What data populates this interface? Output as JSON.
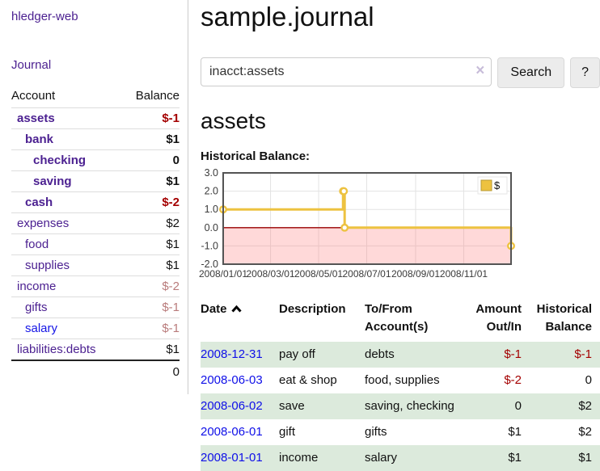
{
  "colors": {
    "link_purple": "#4c2191",
    "link_blue": "#1515e6",
    "negative_strong": "#a40000",
    "negative_muted": "#b97b7b",
    "row_green": "#dceadc",
    "chart_line": "#edc240",
    "chart_zero_line": "#990000",
    "chart_border": "#545454"
  },
  "sidebar": {
    "brand": "hledger-web",
    "journal_link": "Journal",
    "accounts": {
      "header_account": "Account",
      "header_balance": "Balance",
      "rows": [
        {
          "name": "assets",
          "balance": "$-1",
          "level": 1,
          "bold": true,
          "balance_style": "negative"
        },
        {
          "name": "bank",
          "balance": "$1",
          "level": 2,
          "bold": true,
          "balance_style": "normal"
        },
        {
          "name": "checking",
          "balance": "0",
          "level": 3,
          "bold": true,
          "balance_style": "normal"
        },
        {
          "name": "saving",
          "balance": "$1",
          "level": 3,
          "bold": true,
          "balance_style": "normal"
        },
        {
          "name": "cash",
          "balance": "$-2",
          "level": 2,
          "bold": true,
          "balance_style": "negative"
        },
        {
          "name": "expenses",
          "balance": "$2",
          "level": 1,
          "bold": false,
          "balance_style": "normal"
        },
        {
          "name": "food",
          "balance": "$1",
          "level": 2,
          "bold": false,
          "balance_style": "normal"
        },
        {
          "name": "supplies",
          "balance": "$1",
          "level": 2,
          "bold": false,
          "balance_style": "normal"
        },
        {
          "name": "income",
          "balance": "$-2",
          "level": 1,
          "bold": false,
          "balance_style": "muted"
        },
        {
          "name": "gifts",
          "balance": "$-1",
          "level": 2,
          "bold": false,
          "balance_style": "muted"
        },
        {
          "name": "salary",
          "balance": "$-1",
          "level": 2,
          "bold": false,
          "balance_style": "muted",
          "link_style": "blue"
        },
        {
          "name": "liabilities:debts",
          "balance": "$1",
          "level": 1,
          "bold": false,
          "balance_style": "normal"
        }
      ],
      "total": "0"
    }
  },
  "header": {
    "title": "sample.journal"
  },
  "search": {
    "value": "inacct:assets",
    "clear_icon": "×",
    "search_button": "Search",
    "help_button": "?"
  },
  "account_page": {
    "heading": "assets",
    "chart_label": "Historical Balance:"
  },
  "chart_data": {
    "type": "line",
    "step": true,
    "title": "Historical Balance",
    "legend": [
      {
        "label": "$",
        "color": "#edc240"
      }
    ],
    "legend_position": "top-right",
    "grid": true,
    "negative_region": true,
    "x_tick_labels": [
      "2008/01/01",
      "2008/03/01",
      "2008/05/01",
      "2008/07/01",
      "2008/09/01",
      "2008/11/01"
    ],
    "x_tick_days": [
      0,
      60,
      121,
      182,
      244,
      305
    ],
    "x_range_days": [
      0,
      365
    ],
    "y_ticks": [
      "3.0",
      "2.0",
      "1.0",
      "0.0",
      "-1.0",
      "-2.0"
    ],
    "y_tick_values": [
      3,
      2,
      1,
      0,
      -1,
      -2
    ],
    "ylim": [
      -2,
      3
    ],
    "series": [
      {
        "name": "$",
        "color": "#edc240",
        "points": [
          {
            "date": "2008-01-01",
            "day": 0,
            "value": 1
          },
          {
            "date": "2008-06-01",
            "day": 152,
            "value": 2
          },
          {
            "date": "2008-06-02",
            "day": 153,
            "value": 2
          },
          {
            "date": "2008-06-03",
            "day": 154,
            "value": 0
          },
          {
            "date": "2008-12-31",
            "day": 365,
            "value": -1
          }
        ]
      }
    ]
  },
  "register": {
    "headers": {
      "date": "Date",
      "description": "Description",
      "accounts": "To/From\nAccount(s)",
      "amount": "Amount\nOut/In",
      "balance": "Historical\nBalance"
    },
    "sort": "ascending",
    "rows": [
      {
        "date": "2008-12-31",
        "description": "pay off",
        "accounts": "debts",
        "amount": "$-1",
        "balance": "$-1"
      },
      {
        "date": "2008-06-03",
        "description": "eat & shop",
        "accounts": "food, supplies",
        "amount": "$-2",
        "balance": "0"
      },
      {
        "date": "2008-06-02",
        "description": "save",
        "accounts": "saving, checking",
        "amount": "0",
        "balance": "$2"
      },
      {
        "date": "2008-06-01",
        "description": "gift",
        "accounts": "gifts",
        "amount": "$1",
        "balance": "$2"
      },
      {
        "date": "2008-01-01",
        "description": "income",
        "accounts": "salary",
        "amount": "$1",
        "balance": "$1"
      }
    ]
  }
}
